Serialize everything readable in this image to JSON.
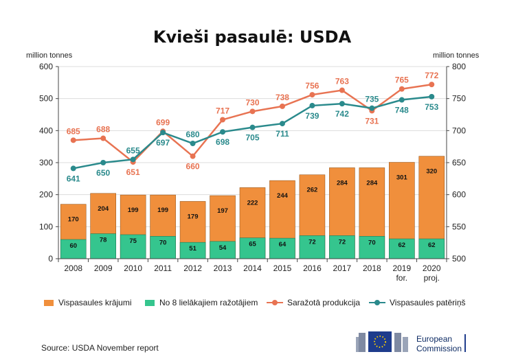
{
  "chart_data": {
    "type": "bar",
    "title": "Kvieši pasaulē: USDA",
    "y_left_label": "million tonnes",
    "y_right_label": "million tonnes",
    "y_left_ticks": [
      "0",
      "100",
      "200",
      "300",
      "400",
      "500",
      "600"
    ],
    "y_right_ticks": [
      "500",
      "550",
      "600",
      "650",
      "700",
      "750",
      "800"
    ],
    "ylim_left": [
      0,
      600
    ],
    "ylim_right": [
      500,
      800
    ],
    "categories": [
      "2008",
      "2009",
      "2010",
      "2011",
      "2012",
      "2013",
      "2014",
      "2015",
      "2016",
      "2017",
      "2018",
      "2019",
      "2020"
    ],
    "category_sublabels": [
      "",
      "",
      "",
      "",
      "",
      "",
      "",
      "",
      "",
      "",
      "",
      "for.",
      "proj."
    ],
    "series": [
      {
        "name": "Vispasaules krājumi",
        "kind": "stacked-bar",
        "axis": "left",
        "color": "#f08f3c",
        "values": [
          170,
          204,
          199,
          199,
          179,
          197,
          222,
          244,
          262,
          284,
          284,
          301,
          320
        ]
      },
      {
        "name": "No 8 lielākajiem ražotājiem",
        "kind": "stacked-bar",
        "axis": "left",
        "color": "#35c58e",
        "values": [
          60,
          78,
          75,
          70,
          51,
          54,
          65,
          64,
          72,
          72,
          70,
          62,
          62
        ]
      },
      {
        "name": "Saražotā produkcija",
        "kind": "line",
        "axis": "right",
        "color": "#e87352",
        "values": [
          685,
          688,
          651,
          699,
          660,
          717,
          730,
          738,
          756,
          763,
          731,
          765,
          772
        ],
        "labels": [
          "685",
          "688",
          "651",
          "699",
          "660",
          "717",
          "730",
          "738",
          "756",
          "763",
          "731",
          "765",
          "772"
        ]
      },
      {
        "name": "Vispasaules patēriņš",
        "kind": "line",
        "axis": "right",
        "color": "#2a8a8c",
        "values": [
          641,
          650,
          655,
          697,
          680,
          698,
          705,
          711,
          739,
          742,
          735,
          748,
          753
        ],
        "labels": [
          "641",
          "650",
          "655",
          "697",
          "680",
          "698",
          "705",
          "711",
          "739",
          "742",
          "735",
          "748",
          "753"
        ]
      }
    ]
  },
  "legend": [
    {
      "label": "Vispasaules krājumi",
      "color": "#f08f3c",
      "kind": "box"
    },
    {
      "label": "No 8 lielākajiem ražotājiem",
      "color": "#35c58e",
      "kind": "box"
    },
    {
      "label": "Saražotā produkcija",
      "color": "#e87352",
      "kind": "line"
    },
    {
      "label": "Vispasaules patēriņš",
      "color": "#2a8a8c",
      "kind": "line"
    }
  ],
  "source": "Source: USDA November report",
  "logo": {
    "line1": "European",
    "line2": "Commission"
  }
}
